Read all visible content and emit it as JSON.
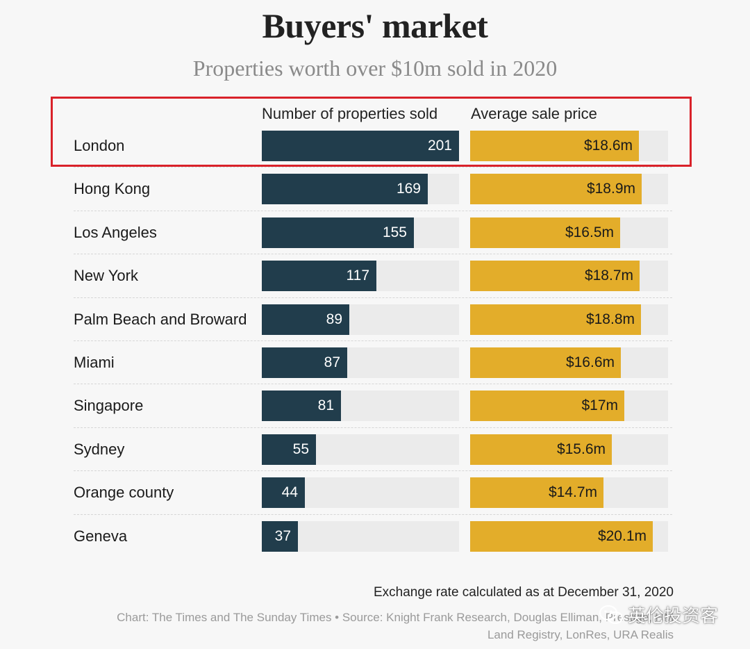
{
  "chart_data": {
    "type": "bar",
    "title": "Buyers' market",
    "subtitle": "Properties worth over $10m sold in 2020",
    "categories": [
      "London",
      "Hong Kong",
      "Los Angeles",
      "New York",
      "Palm Beach and Broward",
      "Miami",
      "Singapore",
      "Sydney",
      "Orange county",
      "Geneva"
    ],
    "series": [
      {
        "name": "Number of properties sold",
        "values": [
          201,
          169,
          155,
          117,
          89,
          87,
          81,
          55,
          44,
          37
        ],
        "labels": [
          "201",
          "169",
          "155",
          "117",
          "89",
          "87",
          "81",
          "55",
          "44",
          "37"
        ],
        "max": 201,
        "color": "#213d4c"
      },
      {
        "name": "Average sale price",
        "values": [
          18.6,
          18.9,
          16.5,
          18.7,
          18.8,
          16.6,
          17,
          15.6,
          14.7,
          20.1
        ],
        "labels": [
          "$18.6m",
          "$18.9m",
          "$16.5m",
          "$18.7m",
          "$18.8m",
          "$16.6m",
          "$17m",
          "$15.6m",
          "$14.7m",
          "$20.1m"
        ],
        "max": 20.1,
        "color": "#e3ad2a"
      }
    ],
    "highlighted_category": "London",
    "highlight_color": "#d9222a",
    "note": "Exchange rate calculated as at December 31, 2020",
    "source": "Chart: The Times and The Sunday Times • Source: Knight Frank Research, Douglas Elliman, Prestige, HM Land Registry, LonRes, URA Realis"
  },
  "watermark": {
    "text": "英伦投资客",
    "icon": "wechat-icon"
  }
}
